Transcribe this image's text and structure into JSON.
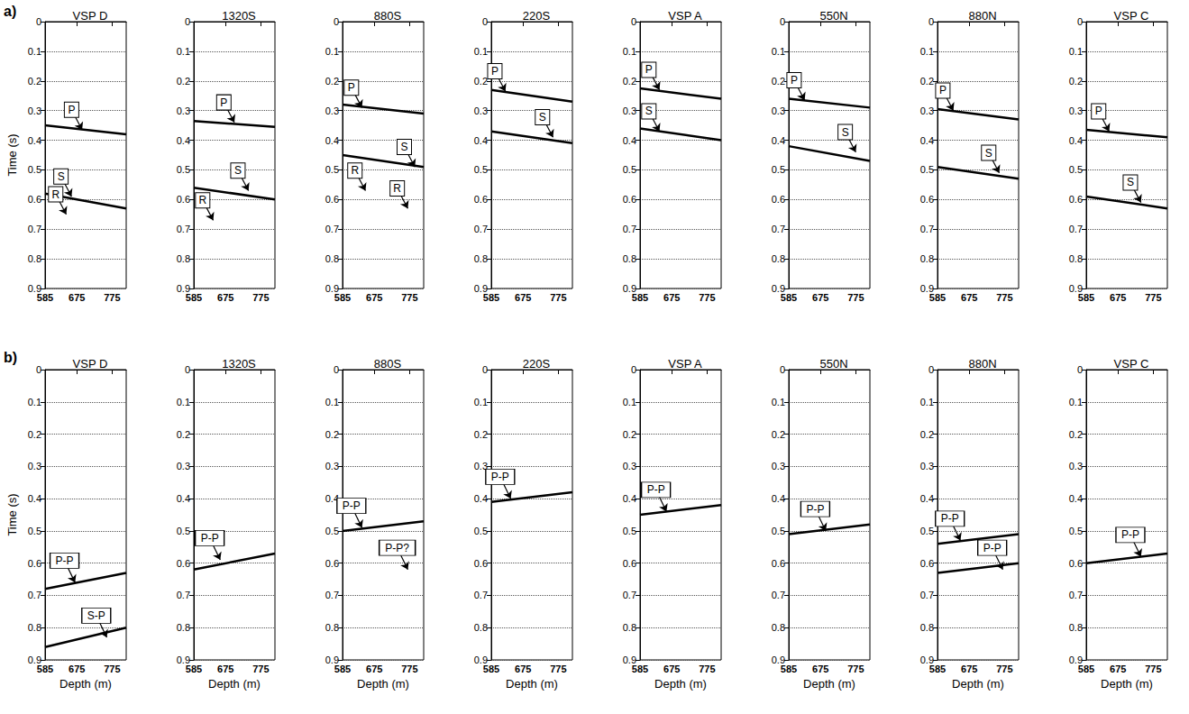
{
  "chart_data": [
    {
      "type": "line",
      "row": "a)",
      "title": "VSP D",
      "y_label": "Time (s)",
      "xlim": [
        585,
        815
      ],
      "xticks": [
        585,
        675,
        775
      ],
      "ylim": [
        0,
        0.9
      ],
      "yticks": [
        0,
        0.1,
        0.2,
        0.3,
        0.4,
        0.5,
        0.6,
        0.7,
        0.8,
        0.9
      ],
      "grid": true,
      "events": [
        {
          "x": [
            585,
            815
          ],
          "values": [
            0.35,
            0.38
          ]
        },
        {
          "x": [
            585,
            815
          ],
          "values": [
            0.58,
            0.63
          ]
        }
      ],
      "annotations": [
        {
          "text": "P",
          "x": 690,
          "y": 0.365
        },
        {
          "text": "S",
          "x": 660,
          "y": 0.59
        },
        {
          "text": "R",
          "x": 645,
          "y": 0.65
        }
      ]
    },
    {
      "type": "line",
      "row": "a)",
      "title": "1320S",
      "xlim": [
        585,
        815
      ],
      "xticks": [
        585,
        675,
        775
      ],
      "ylim": [
        0,
        0.9
      ],
      "yticks": [
        0,
        0.1,
        0.2,
        0.3,
        0.4,
        0.5,
        0.6,
        0.7,
        0.8,
        0.9
      ],
      "grid": true,
      "events": [
        {
          "x": [
            585,
            815
          ],
          "values": [
            0.335,
            0.355
          ]
        },
        {
          "x": [
            585,
            815
          ],
          "values": [
            0.56,
            0.6
          ]
        }
      ],
      "annotations": [
        {
          "text": "P",
          "x": 700,
          "y": 0.34
        },
        {
          "text": "S",
          "x": 740,
          "y": 0.57
        },
        {
          "text": "R",
          "x": 640,
          "y": 0.67
        }
      ]
    },
    {
      "type": "line",
      "row": "a)",
      "title": "880S",
      "xlim": [
        585,
        815
      ],
      "xticks": [
        585,
        675,
        775
      ],
      "ylim": [
        0,
        0.9
      ],
      "yticks": [
        0,
        0.1,
        0.2,
        0.3,
        0.4,
        0.5,
        0.6,
        0.7,
        0.8,
        0.9
      ],
      "grid": true,
      "events": [
        {
          "x": [
            585,
            815
          ],
          "values": [
            0.28,
            0.31
          ]
        },
        {
          "x": [
            585,
            815
          ],
          "values": [
            0.45,
            0.49
          ]
        }
      ],
      "annotations": [
        {
          "text": "P",
          "x": 640,
          "y": 0.29
        },
        {
          "text": "S",
          "x": 790,
          "y": 0.49
        },
        {
          "text": "R",
          "x": 650,
          "y": 0.57
        },
        {
          "text": "R",
          "x": 770,
          "y": 0.63
        }
      ]
    },
    {
      "type": "line",
      "row": "a)",
      "title": "220S",
      "xlim": [
        585,
        815
      ],
      "xticks": [
        585,
        675,
        775
      ],
      "ylim": [
        0,
        0.9
      ],
      "yticks": [
        0,
        0.1,
        0.2,
        0.3,
        0.4,
        0.5,
        0.6,
        0.7,
        0.8,
        0.9
      ],
      "grid": true,
      "events": [
        {
          "x": [
            585,
            815
          ],
          "values": [
            0.23,
            0.27
          ]
        },
        {
          "x": [
            585,
            815
          ],
          "values": [
            0.37,
            0.41
          ]
        }
      ],
      "annotations": [
        {
          "text": "P",
          "x": 625,
          "y": 0.235
        },
        {
          "text": "S",
          "x": 760,
          "y": 0.39
        }
      ]
    },
    {
      "type": "line",
      "row": "a)",
      "title": "VSP A",
      "xlim": [
        585,
        815
      ],
      "xticks": [
        585,
        675,
        775
      ],
      "ylim": [
        0,
        0.9
      ],
      "yticks": [
        0,
        0.1,
        0.2,
        0.3,
        0.4,
        0.5,
        0.6,
        0.7,
        0.8,
        0.9
      ],
      "grid": true,
      "events": [
        {
          "x": [
            585,
            815
          ],
          "values": [
            0.225,
            0.26
          ]
        },
        {
          "x": [
            585,
            815
          ],
          "values": [
            0.36,
            0.4
          ]
        }
      ],
      "annotations": [
        {
          "text": "P",
          "x": 640,
          "y": 0.23
        },
        {
          "text": "S",
          "x": 640,
          "y": 0.37
        }
      ]
    },
    {
      "type": "line",
      "row": "a)",
      "title": "550N",
      "xlim": [
        585,
        815
      ],
      "xticks": [
        585,
        675,
        775
      ],
      "ylim": [
        0,
        0.9
      ],
      "yticks": [
        0,
        0.1,
        0.2,
        0.3,
        0.4,
        0.5,
        0.6,
        0.7,
        0.8,
        0.9
      ],
      "grid": true,
      "events": [
        {
          "x": [
            585,
            815
          ],
          "values": [
            0.26,
            0.29
          ]
        },
        {
          "x": [
            585,
            815
          ],
          "values": [
            0.42,
            0.47
          ]
        }
      ],
      "annotations": [
        {
          "text": "P",
          "x": 630,
          "y": 0.265
        },
        {
          "text": "S",
          "x": 775,
          "y": 0.44
        }
      ]
    },
    {
      "type": "line",
      "row": "a)",
      "title": "880N",
      "xlim": [
        585,
        815
      ],
      "xticks": [
        585,
        675,
        775
      ],
      "ylim": [
        0,
        0.9
      ],
      "yticks": [
        0,
        0.1,
        0.2,
        0.3,
        0.4,
        0.5,
        0.6,
        0.7,
        0.8,
        0.9
      ],
      "grid": true,
      "events": [
        {
          "x": [
            585,
            815
          ],
          "values": [
            0.295,
            0.33
          ]
        },
        {
          "x": [
            585,
            815
          ],
          "values": [
            0.49,
            0.53
          ]
        }
      ],
      "annotations": [
        {
          "text": "P",
          "x": 630,
          "y": 0.3
        },
        {
          "text": "S",
          "x": 760,
          "y": 0.51
        }
      ]
    },
    {
      "type": "line",
      "row": "a)",
      "title": "VSP C",
      "xlim": [
        585,
        815
      ],
      "xticks": [
        585,
        675,
        775
      ],
      "ylim": [
        0,
        0.9
      ],
      "yticks": [
        0,
        0.1,
        0.2,
        0.3,
        0.4,
        0.5,
        0.6,
        0.7,
        0.8,
        0.9
      ],
      "grid": true,
      "events": [
        {
          "x": [
            585,
            815
          ],
          "values": [
            0.365,
            0.39
          ]
        },
        {
          "x": [
            585,
            815
          ],
          "values": [
            0.59,
            0.63
          ]
        }
      ],
      "annotations": [
        {
          "text": "P",
          "x": 650,
          "y": 0.37
        },
        {
          "text": "S",
          "x": 740,
          "y": 0.61
        }
      ]
    },
    {
      "type": "line",
      "row": "b)",
      "title": "VSP D",
      "y_label": "Time (s)",
      "x_label": "Depth (m)",
      "xlim": [
        585,
        815
      ],
      "xticks": [
        585,
        675,
        775
      ],
      "ylim": [
        0,
        0.9
      ],
      "yticks": [
        0,
        0.1,
        0.2,
        0.3,
        0.4,
        0.5,
        0.6,
        0.7,
        0.8,
        0.9
      ],
      "grid": true,
      "events": [
        {
          "x": [
            585,
            815
          ],
          "values": [
            0.68,
            0.63
          ]
        },
        {
          "x": [
            585,
            815
          ],
          "values": [
            0.86,
            0.8
          ]
        }
      ],
      "annotations": [
        {
          "text": "P-P",
          "x": 670,
          "y": 0.66
        },
        {
          "text": "S-P",
          "x": 760,
          "y": 0.83
        }
      ]
    },
    {
      "type": "line",
      "row": "b)",
      "title": "1320S",
      "x_label": "Depth (m)",
      "xlim": [
        585,
        815
      ],
      "xticks": [
        585,
        675,
        775
      ],
      "ylim": [
        0,
        0.9
      ],
      "yticks": [
        0,
        0.1,
        0.2,
        0.3,
        0.4,
        0.5,
        0.6,
        0.7,
        0.8,
        0.9
      ],
      "grid": true,
      "events": [
        {
          "x": [
            585,
            815
          ],
          "values": [
            0.62,
            0.57
          ]
        }
      ],
      "annotations": [
        {
          "text": "P-P",
          "x": 660,
          "y": 0.59
        }
      ]
    },
    {
      "type": "line",
      "row": "b)",
      "title": "880S",
      "x_label": "Depth (m)",
      "xlim": [
        585,
        815
      ],
      "xticks": [
        585,
        675,
        775
      ],
      "ylim": [
        0,
        0.9
      ],
      "yticks": [
        0,
        0.1,
        0.2,
        0.3,
        0.4,
        0.5,
        0.6,
        0.7,
        0.8,
        0.9
      ],
      "grid": true,
      "events": [
        {
          "x": [
            585,
            815
          ],
          "values": [
            0.5,
            0.47
          ]
        }
      ],
      "annotations": [
        {
          "text": "P-P",
          "x": 640,
          "y": 0.49
        },
        {
          "text": "P-P?",
          "x": 770,
          "y": 0.62
        }
      ]
    },
    {
      "type": "line",
      "row": "b)",
      "title": "220S",
      "x_label": "Depth (m)",
      "xlim": [
        585,
        815
      ],
      "xticks": [
        585,
        675,
        775
      ],
      "ylim": [
        0,
        0.9
      ],
      "yticks": [
        0,
        0.1,
        0.2,
        0.3,
        0.4,
        0.5,
        0.6,
        0.7,
        0.8,
        0.9
      ],
      "grid": true,
      "events": [
        {
          "x": [
            585,
            815
          ],
          "values": [
            0.41,
            0.38
          ]
        }
      ],
      "annotations": [
        {
          "text": "P-P",
          "x": 640,
          "y": 0.4
        }
      ]
    },
    {
      "type": "line",
      "row": "b)",
      "title": "VSP A",
      "x_label": "Depth (m)",
      "xlim": [
        585,
        815
      ],
      "xticks": [
        585,
        675,
        775
      ],
      "ylim": [
        0,
        0.9
      ],
      "yticks": [
        0,
        0.1,
        0.2,
        0.3,
        0.4,
        0.5,
        0.6,
        0.7,
        0.8,
        0.9
      ],
      "grid": true,
      "events": [
        {
          "x": [
            585,
            815
          ],
          "values": [
            0.45,
            0.42
          ]
        }
      ],
      "annotations": [
        {
          "text": "P-P",
          "x": 660,
          "y": 0.44
        }
      ]
    },
    {
      "type": "line",
      "row": "b)",
      "title": "550N",
      "x_label": "Depth (m)",
      "xlim": [
        585,
        815
      ],
      "xticks": [
        585,
        675,
        775
      ],
      "ylim": [
        0,
        0.9
      ],
      "yticks": [
        0,
        0.1,
        0.2,
        0.3,
        0.4,
        0.5,
        0.6,
        0.7,
        0.8,
        0.9
      ],
      "grid": true,
      "events": [
        {
          "x": [
            585,
            815
          ],
          "values": [
            0.51,
            0.48
          ]
        }
      ],
      "annotations": [
        {
          "text": "P-P",
          "x": 690,
          "y": 0.5
        }
      ]
    },
    {
      "type": "line",
      "row": "b)",
      "title": "880N",
      "x_label": "Depth (m)",
      "xlim": [
        585,
        815
      ],
      "xticks": [
        585,
        675,
        775
      ],
      "ylim": [
        0,
        0.9
      ],
      "yticks": [
        0,
        0.1,
        0.2,
        0.3,
        0.4,
        0.5,
        0.6,
        0.7,
        0.8,
        0.9
      ],
      "grid": true,
      "events": [
        {
          "x": [
            585,
            815
          ],
          "values": [
            0.54,
            0.51
          ]
        },
        {
          "x": [
            585,
            815
          ],
          "values": [
            0.63,
            0.6
          ]
        }
      ],
      "annotations": [
        {
          "text": "P-P",
          "x": 650,
          "y": 0.53
        },
        {
          "text": "P-P",
          "x": 770,
          "y": 0.62
        }
      ]
    },
    {
      "type": "line",
      "row": "b)",
      "title": "VSP C",
      "x_label": "Depth (m)",
      "xlim": [
        585,
        815
      ],
      "xticks": [
        585,
        675,
        775
      ],
      "ylim": [
        0,
        0.9
      ],
      "yticks": [
        0,
        0.1,
        0.2,
        0.3,
        0.4,
        0.5,
        0.6,
        0.7,
        0.8,
        0.9
      ],
      "grid": true,
      "events": [
        {
          "x": [
            585,
            815
          ],
          "values": [
            0.6,
            0.57
          ]
        }
      ],
      "annotations": [
        {
          "text": "P-P",
          "x": 740,
          "y": 0.58
        }
      ]
    }
  ]
}
